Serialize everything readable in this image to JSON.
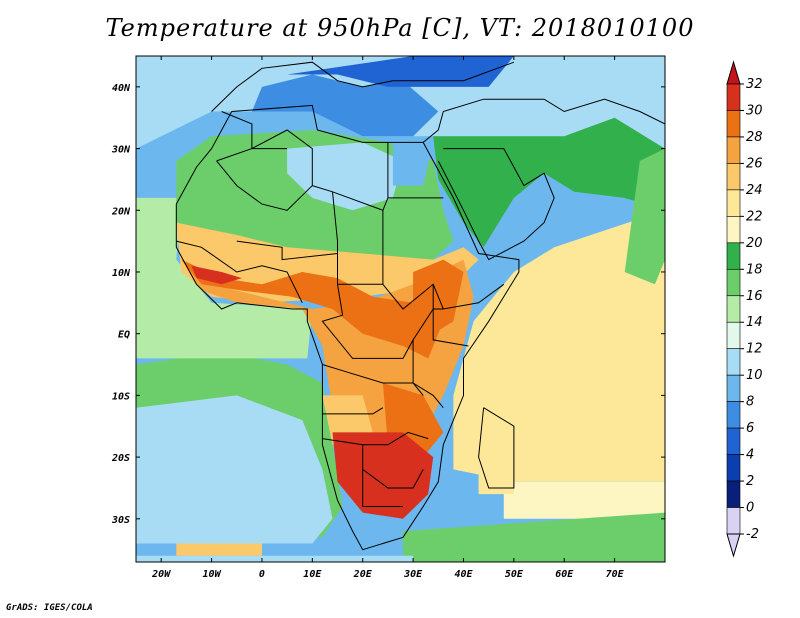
{
  "title": "Temperature at 950hPa [C], VT: 2018010100",
  "credit": "GrADS: IGES/COLA",
  "map": {
    "lon_range": [
      -25,
      80
    ],
    "lat_range": [
      -37,
      45
    ],
    "lon_ticks": [
      {
        "lon": -20,
        "label": "20W"
      },
      {
        "lon": -10,
        "label": "10W"
      },
      {
        "lon": 0,
        "label": "0"
      },
      {
        "lon": 10,
        "label": "10E"
      },
      {
        "lon": 20,
        "label": "20E"
      },
      {
        "lon": 30,
        "label": "30E"
      },
      {
        "lon": 40,
        "label": "40E"
      },
      {
        "lon": 50,
        "label": "50E"
      },
      {
        "lon": 60,
        "label": "60E"
      },
      {
        "lon": 70,
        "label": "70E"
      }
    ],
    "lat_ticks": [
      {
        "lat": 40,
        "label": "40N"
      },
      {
        "lat": 30,
        "label": "30N"
      },
      {
        "lat": 20,
        "label": "20N"
      },
      {
        "lat": 10,
        "label": "10N"
      },
      {
        "lat": 0,
        "label": "EQ"
      },
      {
        "lat": -10,
        "label": "10S"
      },
      {
        "lat": -20,
        "label": "20S"
      },
      {
        "lat": -30,
        "label": "30S"
      }
    ]
  },
  "colorbar": {
    "levels": [
      {
        "label": "32",
        "color": "#a50f15"
      },
      {
        "label": "30",
        "color": "#d7301f"
      },
      {
        "label": "28",
        "color": "#ec7014"
      },
      {
        "label": "26",
        "color": "#f4a340"
      },
      {
        "label": "24",
        "color": "#fbc86a"
      },
      {
        "label": "22",
        "color": "#fde89a"
      },
      {
        "label": "20",
        "color": "#fdf6c3"
      },
      {
        "label": "18",
        "color": "#31b04b"
      },
      {
        "label": "16",
        "color": "#6cce6a"
      },
      {
        "label": "14",
        "color": "#b4eca7"
      },
      {
        "label": "12",
        "color": "#e2f8ea"
      },
      {
        "label": "10",
        "color": "#a8dcf5"
      },
      {
        "label": "8",
        "color": "#6cb8ee"
      },
      {
        "label": "6",
        "color": "#3d8ee3"
      },
      {
        "label": "4",
        "color": "#2064d4"
      },
      {
        "label": "2",
        "color": "#0b3fb0"
      },
      {
        "label": "0",
        "color": "#0a1f7a"
      },
      {
        "label": "-2",
        "color": "#d9d2f2"
      }
    ],
    "top_arrow_color": "#c8121b",
    "bottom_arrow_color": "#d9d2f2"
  },
  "field_colors": {
    "ocean_south_far": "#6cb8ee",
    "ocean_south_mid": "#a8dcf5",
    "ocean_south_green": "#6cce6a",
    "ocean_atlantic": "#b4eca7",
    "indian_ocean": "#fde89a",
    "indian_ocean_south": "#fdf6c3",
    "land_north": "#a8dcf5",
    "land_north_dark": "#6cb8ee",
    "sahara": "#6cce6a",
    "sahel": "#fbc86a",
    "central": "#f4a340",
    "hot": "#ec7014",
    "hottest": "#d7301f",
    "arabia": "#31b04b",
    "mediterranean": "#3d8ee3",
    "europe": "#2064d4",
    "kalahari": "#d7301f",
    "border": "#000000"
  }
}
